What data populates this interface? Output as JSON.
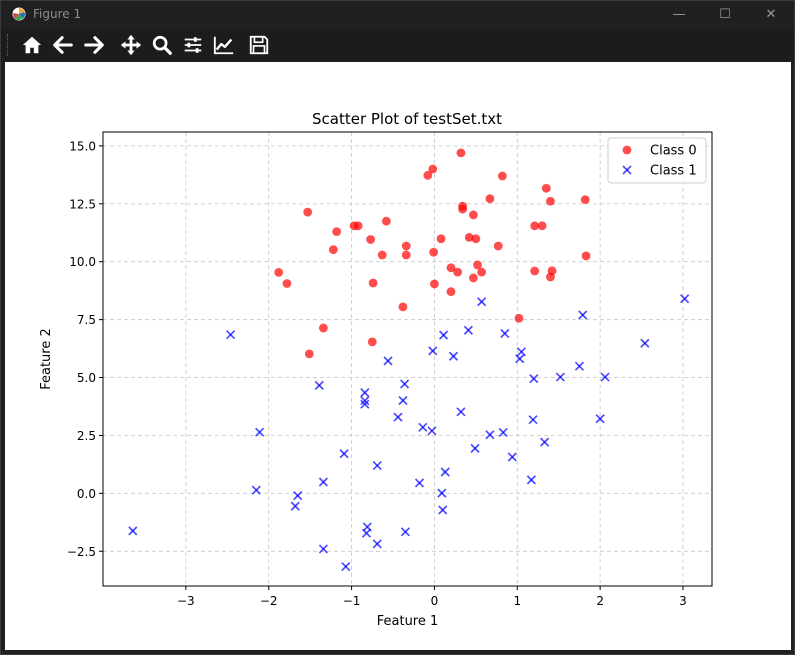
{
  "window": {
    "title": "Figure 1",
    "controls": {
      "minimize": "—",
      "maximize": "☐",
      "close": "✕"
    }
  },
  "toolbar": {
    "tools": [
      "home-icon",
      "back-icon",
      "forward-icon",
      "pan-icon",
      "zoom-icon",
      "subplots-icon",
      "edit-axis-icon",
      "save-icon"
    ]
  },
  "chart_data": {
    "type": "scatter",
    "title": "Scatter Plot of testSet.txt",
    "xlabel": "Feature 1",
    "ylabel": "Feature 2",
    "xlim": [
      -4.0,
      3.35
    ],
    "ylim": [
      -4.0,
      15.6
    ],
    "xticks": [
      -3,
      -2,
      -1,
      0,
      1,
      2,
      3
    ],
    "xtick_labels": [
      "−3",
      "−2",
      "−1",
      "0",
      "1",
      "2",
      "3"
    ],
    "yticks": [
      -2.5,
      0.0,
      2.5,
      5.0,
      7.5,
      10.0,
      12.5,
      15.0
    ],
    "ytick_labels": [
      "−2.5",
      "0.0",
      "2.5",
      "5.0",
      "7.5",
      "10.0",
      "12.5",
      "15.0"
    ],
    "grid": true,
    "legend_position": "top-right",
    "series": [
      {
        "name": "Class 0",
        "marker": "circle",
        "color": "#ff0000",
        "points": [
          [
            -1.88,
            9.54
          ],
          [
            -1.78,
            9.06
          ],
          [
            -1.53,
            12.14
          ],
          [
            -1.51,
            6.02
          ],
          [
            -1.34,
            7.14
          ],
          [
            -1.22,
            10.52
          ],
          [
            -1.18,
            11.3
          ],
          [
            -0.97,
            11.55
          ],
          [
            -0.92,
            11.55
          ],
          [
            -0.77,
            10.96
          ],
          [
            -0.74,
            9.08
          ],
          [
            -0.75,
            6.54
          ],
          [
            -0.63,
            10.29
          ],
          [
            -0.58,
            11.75
          ],
          [
            -0.38,
            8.05
          ],
          [
            -0.34,
            10.68
          ],
          [
            -0.34,
            10.29
          ],
          [
            -0.08,
            13.73
          ],
          [
            -0.02,
            14.0
          ],
          [
            -0.01,
            10.41
          ],
          [
            0.0,
            9.04
          ],
          [
            0.08,
            10.99
          ],
          [
            0.2,
            9.74
          ],
          [
            0.2,
            8.71
          ],
          [
            0.28,
            9.55
          ],
          [
            0.32,
            14.7
          ],
          [
            0.34,
            12.4
          ],
          [
            0.34,
            12.27
          ],
          [
            0.42,
            11.05
          ],
          [
            0.47,
            12.02
          ],
          [
            0.47,
            9.3
          ],
          [
            0.5,
            10.99
          ],
          [
            0.52,
            9.86
          ],
          [
            0.57,
            9.55
          ],
          [
            0.67,
            12.72
          ],
          [
            0.77,
            10.68
          ],
          [
            0.82,
            13.7
          ],
          [
            1.02,
            7.56
          ],
          [
            1.21,
            11.55
          ],
          [
            1.21,
            9.6
          ],
          [
            1.3,
            11.55
          ],
          [
            1.35,
            13.17
          ],
          [
            1.4,
            12.61
          ],
          [
            1.4,
            9.34
          ],
          [
            1.42,
            9.61
          ],
          [
            1.82,
            12.68
          ],
          [
            1.83,
            10.25
          ]
        ]
      },
      {
        "name": "Class 1",
        "marker": "x",
        "color": "#0000ff",
        "points": [
          [
            -3.64,
            -1.62
          ],
          [
            -2.46,
            6.85
          ],
          [
            -2.15,
            0.14
          ],
          [
            -2.11,
            2.64
          ],
          [
            -1.68,
            -0.55
          ],
          [
            -1.65,
            -0.1
          ],
          [
            -1.39,
            4.66
          ],
          [
            -1.34,
            0.49
          ],
          [
            -1.34,
            -2.4
          ],
          [
            -1.09,
            1.71
          ],
          [
            -1.07,
            -3.16
          ],
          [
            -0.84,
            4.35
          ],
          [
            -0.84,
            4.0
          ],
          [
            -0.84,
            3.85
          ],
          [
            -0.82,
            -1.72
          ],
          [
            -0.81,
            -1.45
          ],
          [
            -0.69,
            1.2
          ],
          [
            -0.69,
            -2.18
          ],
          [
            -0.56,
            5.72
          ],
          [
            -0.44,
            3.29
          ],
          [
            -0.38,
            4.01
          ],
          [
            -0.36,
            4.72
          ],
          [
            -0.35,
            -1.66
          ],
          [
            -0.18,
            0.45
          ],
          [
            -0.14,
            2.85
          ],
          [
            -0.03,
            2.7
          ],
          [
            -0.02,
            6.15
          ],
          [
            0.09,
            0.01
          ],
          [
            0.1,
            -0.72
          ],
          [
            0.11,
            6.83
          ],
          [
            0.13,
            0.92
          ],
          [
            0.23,
            5.92
          ],
          [
            0.32,
            3.52
          ],
          [
            0.41,
            7.04
          ],
          [
            0.49,
            1.94
          ],
          [
            0.57,
            8.27
          ],
          [
            0.67,
            2.53
          ],
          [
            0.83,
            2.63
          ],
          [
            0.85,
            6.9
          ],
          [
            0.94,
            1.57
          ],
          [
            1.03,
            5.81
          ],
          [
            1.05,
            6.11
          ],
          [
            1.17,
            0.58
          ],
          [
            1.19,
            3.18
          ],
          [
            1.2,
            4.95
          ],
          [
            1.33,
            2.21
          ],
          [
            1.52,
            5.02
          ],
          [
            1.75,
            5.49
          ],
          [
            1.79,
            7.7
          ],
          [
            2.0,
            3.22
          ],
          [
            2.06,
            5.02
          ],
          [
            2.54,
            6.48
          ],
          [
            3.02,
            8.4
          ]
        ]
      }
    ]
  }
}
